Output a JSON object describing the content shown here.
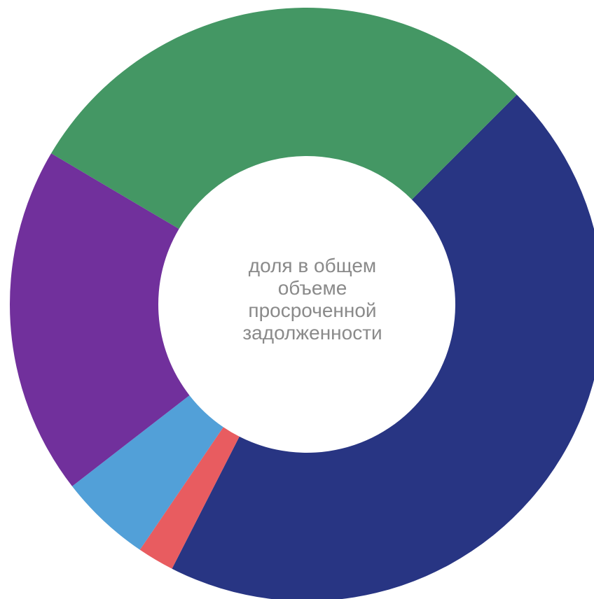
{
  "chart_data": {
    "type": "pie",
    "donut": true,
    "slices": [
      {
        "value": 0.45,
        "color": "#283583"
      },
      {
        "value": 0.02,
        "color": "#E85C60"
      },
      {
        "value": 0.05,
        "color": "#52A0D8"
      },
      {
        "value": 0.19,
        "color": "#71309C"
      },
      {
        "value": 0.29,
        "color": "#449764"
      }
    ],
    "center_label": [
      "доля в общем",
      "объеме",
      "просроченной",
      "задолженности"
    ],
    "grid": false,
    "legend": "none"
  }
}
